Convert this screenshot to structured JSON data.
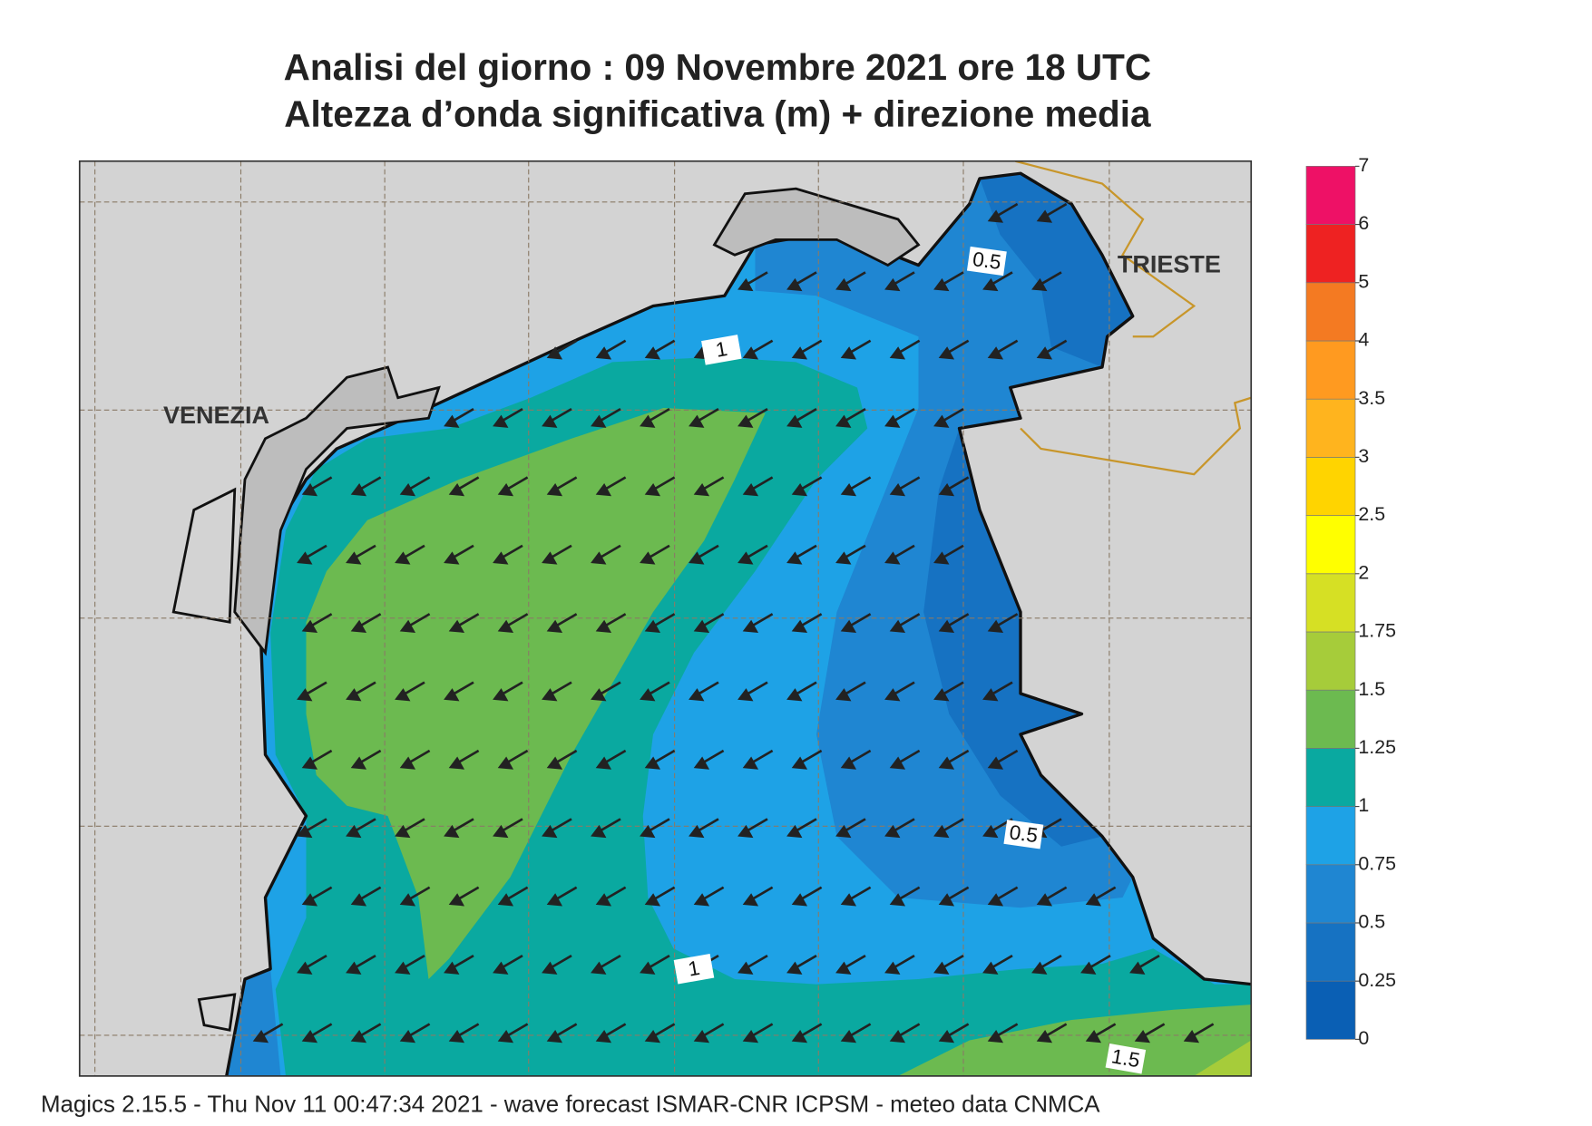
{
  "header": {
    "title_lines": [
      "Analisi del giorno :  09 Novembre  2021   ore 18 UTC",
      "Altezza d’onda significativa (m) + direzione media"
    ]
  },
  "map": {
    "place_labels": [
      "VENEZIA",
      "TRIESTE"
    ],
    "contour_labels": [
      0.5,
      1,
      0.5,
      1,
      1.5
    ]
  },
  "colorbar": {
    "levels": [
      0,
      0.25,
      0.5,
      0.75,
      1,
      1.25,
      1.5,
      1.75,
      2,
      2.5,
      3,
      3.5,
      4,
      5,
      6,
      7
    ],
    "colors": [
      "#0a5fb4",
      "#1672c2",
      "#1f86d2",
      "#1ea2e6",
      "#0aa9a0",
      "#6cba50",
      "#a6cc3a",
      "#d6e024",
      "#ffff00",
      "#ffd400",
      "#ffb41e",
      "#ff9a20",
      "#f47a22",
      "#ee2222",
      "#ee1166"
    ]
  },
  "footer": {
    "text": "Magics 2.15.5 - Thu Nov 11 00:47:34 2021 - wave forecast  ISMAR-CNR  ICPSM - meteo data   CNMCA"
  }
}
